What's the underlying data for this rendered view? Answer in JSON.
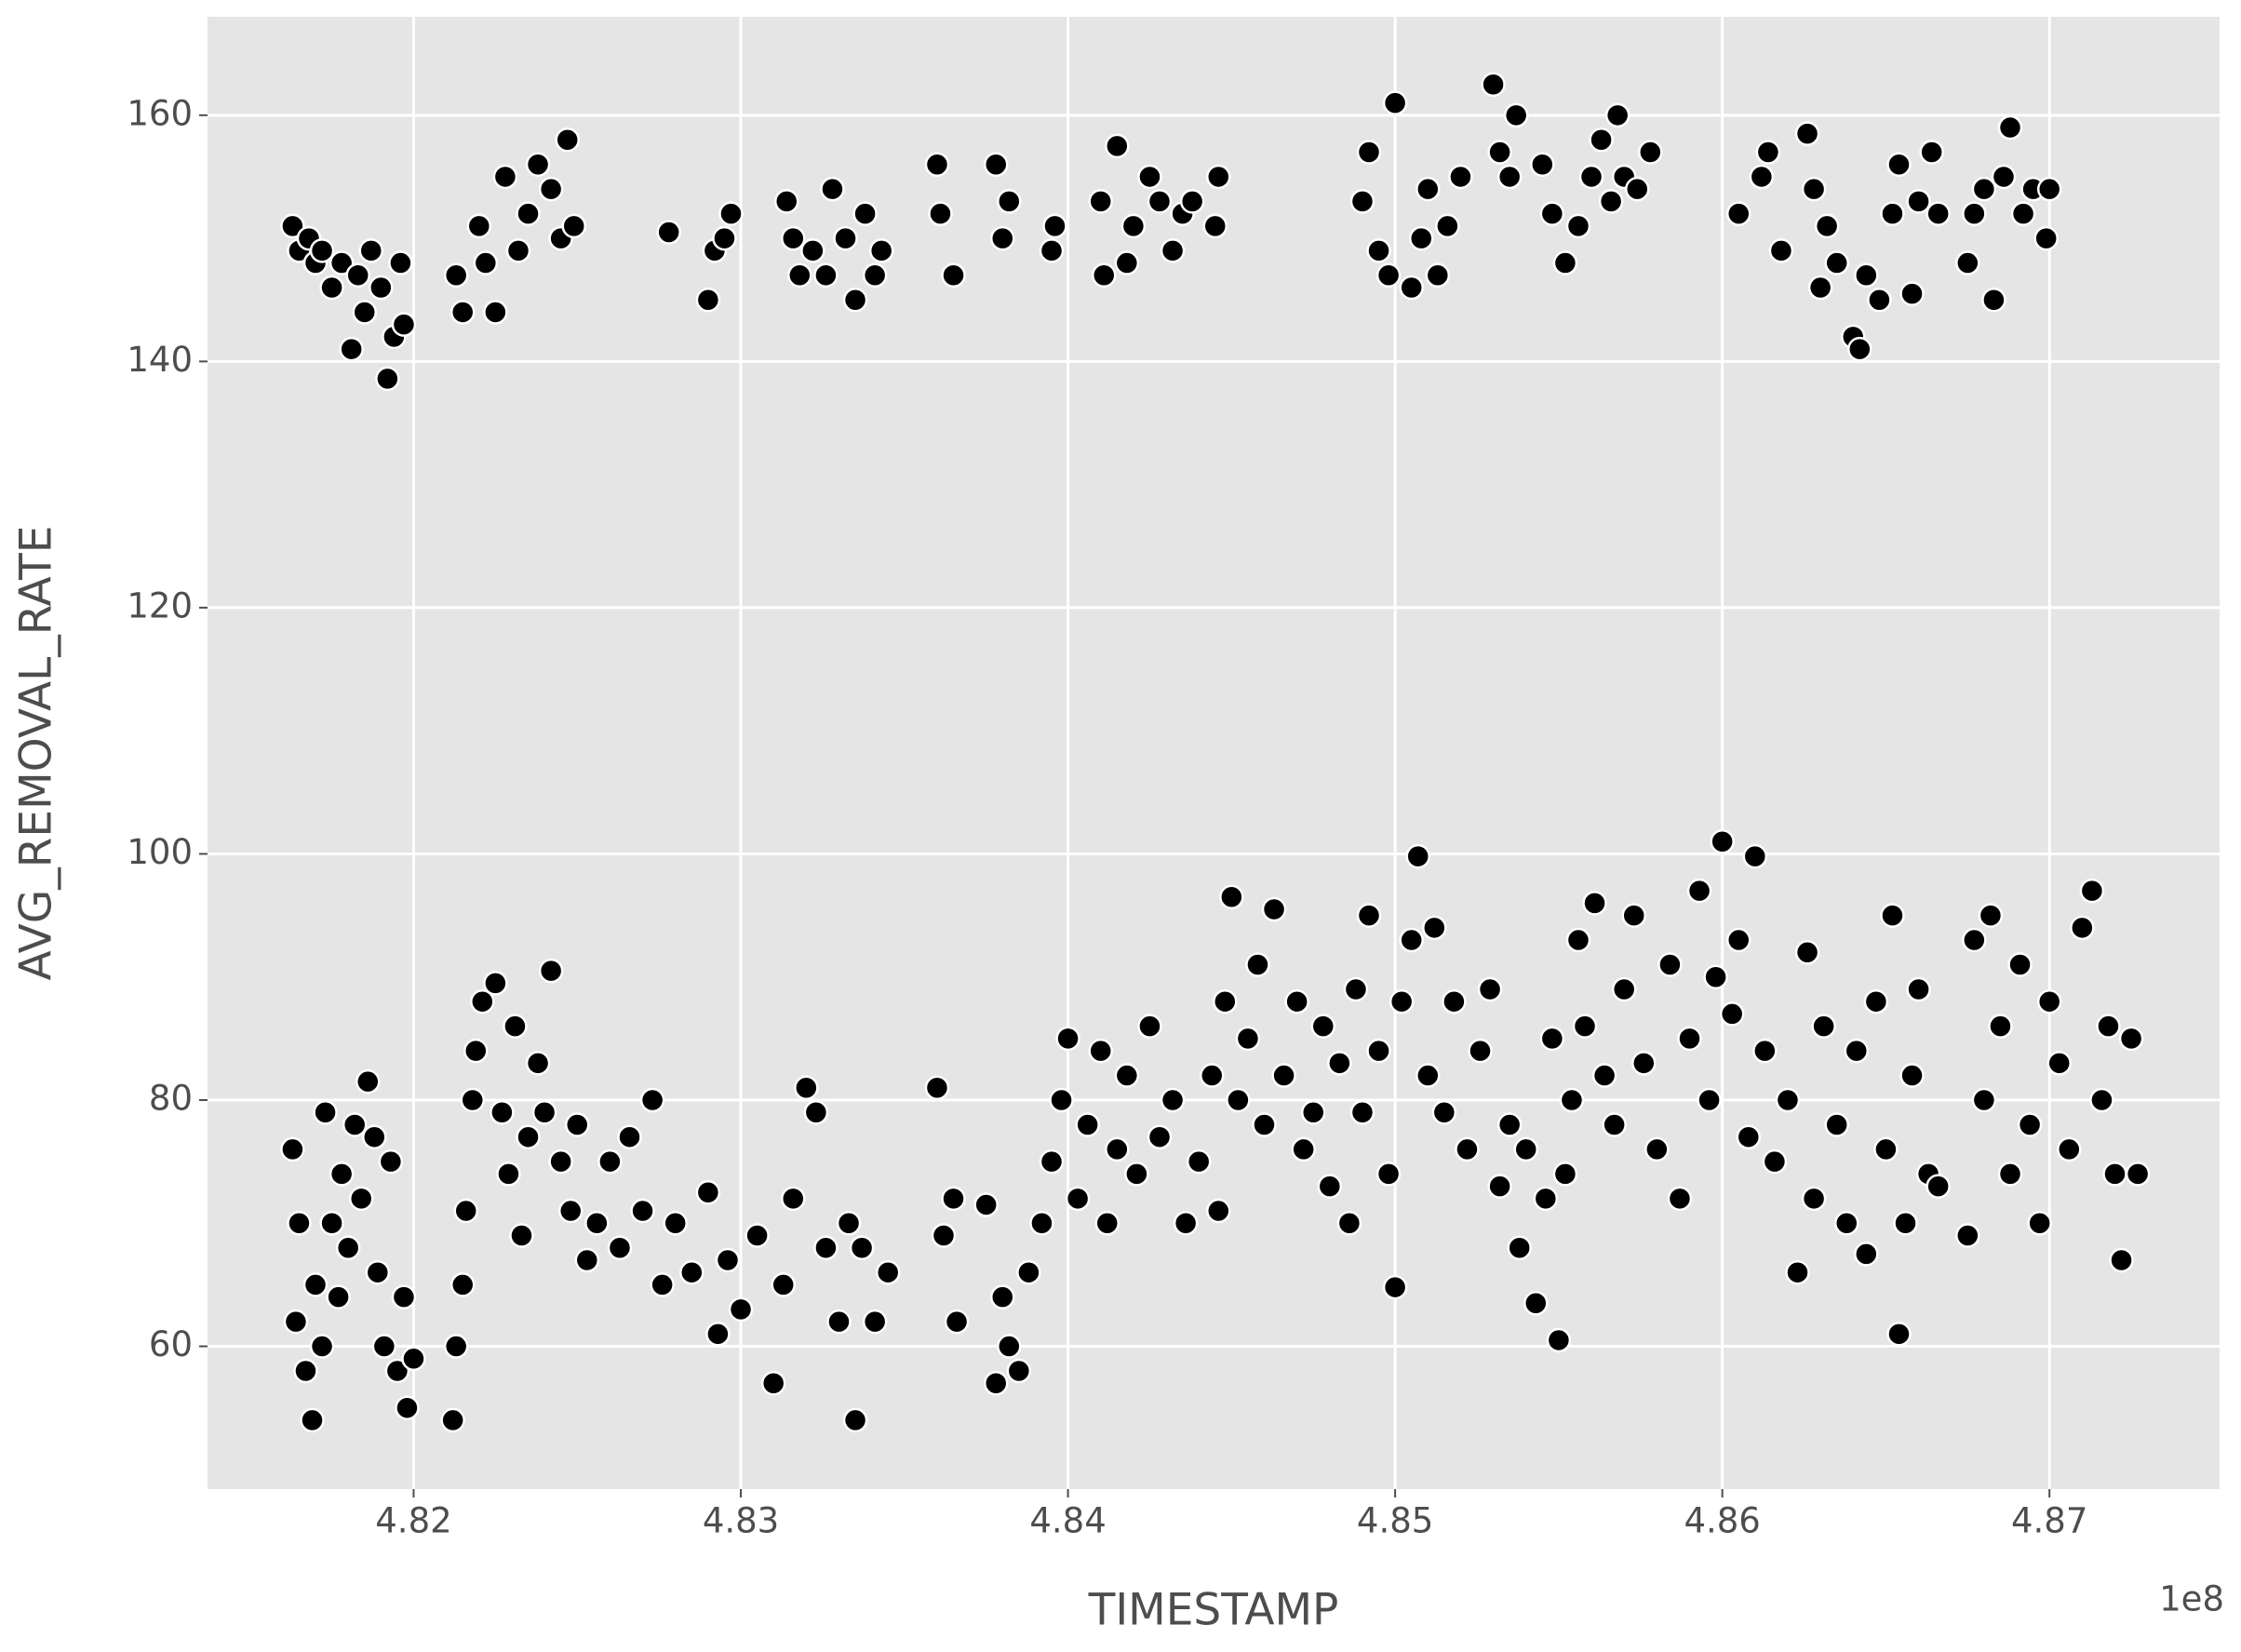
{
  "chart_data": {
    "type": "scatter",
    "x_label": "TIMESTAMP",
    "y_label": "AVG_REMOVAL_RATE",
    "x_offset_label": "1e8",
    "color": "#000000",
    "edge_color": "#ffffff",
    "background": "#e5e5e5",
    "grid": true,
    "xlim": [
      4.8137,
      4.8752
    ],
    "ylim": [
      48.4,
      168
    ],
    "xticks": [
      4.82,
      4.83,
      4.84,
      4.85,
      4.86,
      4.87
    ],
    "yticks": [
      60,
      80,
      100,
      120,
      140,
      160
    ],
    "x": [
      4.8163,
      4.8165,
      4.8168,
      4.817,
      4.8172,
      4.8175,
      4.8178,
      4.8181,
      4.8183,
      4.8185,
      4.8187,
      4.819,
      4.8192,
      4.8194,
      4.8196,
      4.8197,
      4.8213,
      4.8215,
      4.822,
      4.8222,
      4.8225,
      4.8228,
      4.8232,
      4.8235,
      4.8238,
      4.8242,
      4.8245,
      4.8247,
      4.8249,
      4.8278,
      4.829,
      4.8292,
      4.8295,
      4.8297,
      4.8314,
      4.8316,
      4.8318,
      4.8322,
      4.8326,
      4.8328,
      4.8332,
      4.8335,
      4.8338,
      4.8341,
      4.8343,
      4.836,
      4.8361,
      4.8365,
      4.8378,
      4.838,
      4.8382,
      4.8395,
      4.8396,
      4.841,
      4.8411,
      4.8415,
      4.8418,
      4.842,
      4.8425,
      4.8428,
      4.8432,
      4.8435,
      4.8438,
      4.8445,
      4.8446,
      4.849,
      4.8492,
      4.8495,
      4.8498,
      4.85,
      4.8505,
      4.8508,
      4.851,
      4.8513,
      4.8516,
      4.852,
      4.853,
      4.8532,
      4.8535,
      4.8537,
      4.8545,
      4.8548,
      4.8552,
      4.8556,
      4.856,
      4.8563,
      4.8566,
      4.8568,
      4.857,
      4.8574,
      4.8578,
      4.8605,
      4.8612,
      4.8614,
      4.8618,
      4.8626,
      4.8628,
      4.863,
      4.8632,
      4.8635,
      4.864,
      4.8642,
      4.8644,
      4.8648,
      4.8652,
      4.8654,
      4.8658,
      4.866,
      4.8664,
      4.8666,
      4.8675,
      4.8677,
      4.868,
      4.8683,
      4.8686,
      4.8688,
      4.8692,
      4.8695,
      4.8699,
      4.87,
      4.8163,
      4.8164,
      4.8165,
      4.8167,
      4.8169,
      4.817,
      4.8172,
      4.8173,
      4.8175,
      4.8177,
      4.8178,
      4.818,
      4.8182,
      4.8184,
      4.8186,
      4.8188,
      4.8189,
      4.8191,
      4.8193,
      4.8195,
      4.8197,
      4.8198,
      4.82,
      4.8212,
      4.8213,
      4.8215,
      4.8216,
      4.8218,
      4.8219,
      4.8221,
      4.8225,
      4.8227,
      4.8229,
      4.8231,
      4.8233,
      4.8235,
      4.8238,
      4.824,
      4.8242,
      4.8245,
      4.8248,
      4.825,
      4.8253,
      4.8256,
      4.826,
      4.8263,
      4.8266,
      4.827,
      4.8273,
      4.8276,
      4.828,
      4.8285,
      4.829,
      4.8293,
      4.8296,
      4.83,
      4.8305,
      4.831,
      4.8313,
      4.8316,
      4.832,
      4.8323,
      4.8326,
      4.833,
      4.8333,
      4.8335,
      4.8337,
      4.8341,
      4.8345,
      4.836,
      4.8362,
      4.8365,
      4.8366,
      4.8375,
      4.8378,
      4.838,
      4.8382,
      4.8385,
      4.8388,
      4.8392,
      4.8395,
      4.8398,
      4.84,
      4.8403,
      4.8406,
      4.841,
      4.8412,
      4.8415,
      4.8418,
      4.8421,
      4.8425,
      4.8428,
      4.8432,
      4.8436,
      4.844,
      4.8444,
      4.8446,
      4.8448,
      4.845,
      4.8452,
      4.8455,
      4.8458,
      4.846,
      4.8463,
      4.8466,
      4.847,
      4.8472,
      4.8475,
      4.8478,
      4.848,
      4.8483,
      4.8486,
      4.8488,
      4.849,
      4.8492,
      4.8495,
      4.8498,
      4.85,
      4.8502,
      4.8505,
      4.8507,
      4.851,
      4.8512,
      4.8515,
      4.8518,
      4.8522,
      4.8526,
      4.8529,
      4.8532,
      4.8535,
      4.8538,
      4.854,
      4.8543,
      4.8546,
      4.8548,
      4.855,
      4.8552,
      4.8554,
      4.8556,
      4.8558,
      4.8561,
      4.8564,
      4.8567,
      4.857,
      4.8573,
      4.8576,
      4.858,
      4.8584,
      4.8587,
      4.859,
      4.8593,
      4.8596,
      4.8598,
      4.86,
      4.8603,
      4.8605,
      4.8608,
      4.861,
      4.8613,
      4.8616,
      4.862,
      4.8623,
      4.8626,
      4.8628,
      4.8631,
      4.8635,
      4.8638,
      4.8641,
      4.8644,
      4.8647,
      4.865,
      4.8652,
      4.8654,
      4.8656,
      4.8658,
      4.866,
      4.8663,
      4.8666,
      4.8675,
      4.8677,
      4.868,
      4.8682,
      4.8685,
      4.8688,
      4.8691,
      4.8694,
      4.8697,
      4.87,
      4.8703,
      4.8706,
      4.871,
      4.8713,
      4.8716,
      4.8718,
      4.872,
      4.8722,
      4.8725,
      4.8727
    ],
    "values": [
      151,
      149,
      150,
      148,
      149,
      146,
      148,
      141,
      147,
      144,
      149,
      146,
      138.6,
      142,
      148,
      143,
      147,
      144,
      151,
      148,
      144,
      155,
      149,
      152,
      156,
      154,
      150,
      158,
      151,
      150.5,
      145,
      149,
      150,
      152,
      153,
      150,
      147,
      149,
      147,
      154,
      150,
      145,
      152,
      147,
      149,
      156,
      152,
      147,
      156,
      150,
      153,
      149,
      151,
      153,
      147,
      157.5,
      148,
      151,
      155,
      153,
      149,
      152,
      153,
      151,
      155,
      153,
      157,
      149,
      147,
      161,
      146,
      150,
      154,
      147,
      151,
      155,
      162.5,
      157,
      155,
      160,
      156,
      152,
      148,
      151,
      155,
      158,
      153,
      160,
      155,
      154,
      157,
      152,
      155,
      157,
      149,
      158.5,
      154,
      146,
      151,
      148,
      142,
      141,
      147,
      145,
      152,
      156,
      145.5,
      153,
      157,
      152,
      148,
      152,
      154,
      145,
      155,
      159,
      152,
      154,
      150,
      154,
      76,
      62,
      70,
      58,
      54,
      65,
      60,
      79,
      70,
      64,
      74,
      68,
      78,
      72,
      81.5,
      77,
      66,
      60,
      75,
      58,
      64,
      55,
      59,
      54,
      60,
      65,
      71,
      80,
      84,
      88,
      89.5,
      79,
      74,
      86,
      69,
      77,
      83,
      79,
      90.5,
      75,
      71,
      78,
      67,
      70,
      75,
      68,
      77,
      71,
      80,
      65,
      70,
      66,
      72.5,
      61,
      67,
      63,
      69,
      57,
      65,
      72,
      81,
      79,
      68,
      62,
      70,
      54,
      68,
      62,
      66,
      81,
      69,
      72,
      62,
      71.5,
      57,
      64,
      60,
      58,
      66,
      70,
      75,
      80,
      85,
      72,
      78,
      84,
      70,
      76,
      82,
      74,
      86,
      77,
      80,
      70,
      75,
      82,
      71,
      88,
      96.5,
      80,
      85,
      91,
      78,
      95.5,
      82,
      88,
      76,
      79,
      86,
      73,
      83,
      70,
      89,
      79,
      95,
      84,
      74,
      64.8,
      88,
      93,
      99.8,
      82,
      94,
      79,
      88,
      76,
      84,
      89,
      73,
      78,
      68,
      76,
      63.5,
      72,
      85,
      60.5,
      74,
      80,
      93,
      86,
      96,
      82,
      78,
      89,
      95,
      83,
      76,
      91,
      72,
      85,
      97,
      80,
      90,
      101,
      87,
      93,
      77,
      99.8,
      84,
      75,
      80,
      66,
      92,
      72,
      86,
      78,
      70,
      84,
      67.5,
      88,
      76,
      95,
      61,
      70,
      82,
      89,
      74,
      73,
      69,
      93,
      80,
      95,
      86,
      74,
      91,
      78,
      70,
      88,
      83,
      76,
      94,
      97,
      80,
      86,
      74,
      67,
      85,
      74
    ]
  }
}
